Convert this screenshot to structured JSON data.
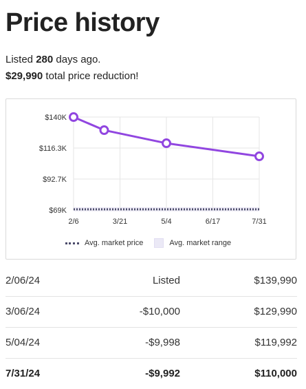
{
  "title": "Price history",
  "summary": {
    "listed_prefix": "Listed",
    "days": "280",
    "listed_suffix": "days ago.",
    "reduction_amount": "$29,990",
    "reduction_suffix": "total price reduction!"
  },
  "chart_data": {
    "type": "line",
    "x_tick_labels": [
      "2/6",
      "3/21",
      "5/4",
      "6/17",
      "7/31"
    ],
    "y_tick_labels": [
      "$140K",
      "$116.3K",
      "$92.7K",
      "$69K"
    ],
    "x": [
      "2024-02-06",
      "2024-03-06",
      "2024-05-04",
      "2024-07-31"
    ],
    "values": [
      139990,
      129990,
      119992,
      110000
    ],
    "avg_market_price": 69000,
    "avg_market_range": [
      68000,
      71000
    ],
    "ylim": [
      69000,
      140000
    ],
    "legend_placement": "bottom",
    "grid": true,
    "legend": {
      "avg_price_label": "Avg. market price",
      "avg_range_label": "Avg. market range"
    },
    "colors": {
      "series": "#9146e0",
      "avg_price_line": "#4b4b6a",
      "avg_range": "#ebe9f6",
      "grid": "#e6e6e6"
    }
  },
  "history": [
    {
      "date": "2/06/24",
      "event": "Listed",
      "price": "$139,990"
    },
    {
      "date": "3/06/24",
      "event": "-$10,000",
      "price": "$129,990"
    },
    {
      "date": "5/04/24",
      "event": "-$9,998",
      "price": "$119,992"
    },
    {
      "date": "7/31/24",
      "event": "-$9,992",
      "price": "$110,000"
    }
  ]
}
